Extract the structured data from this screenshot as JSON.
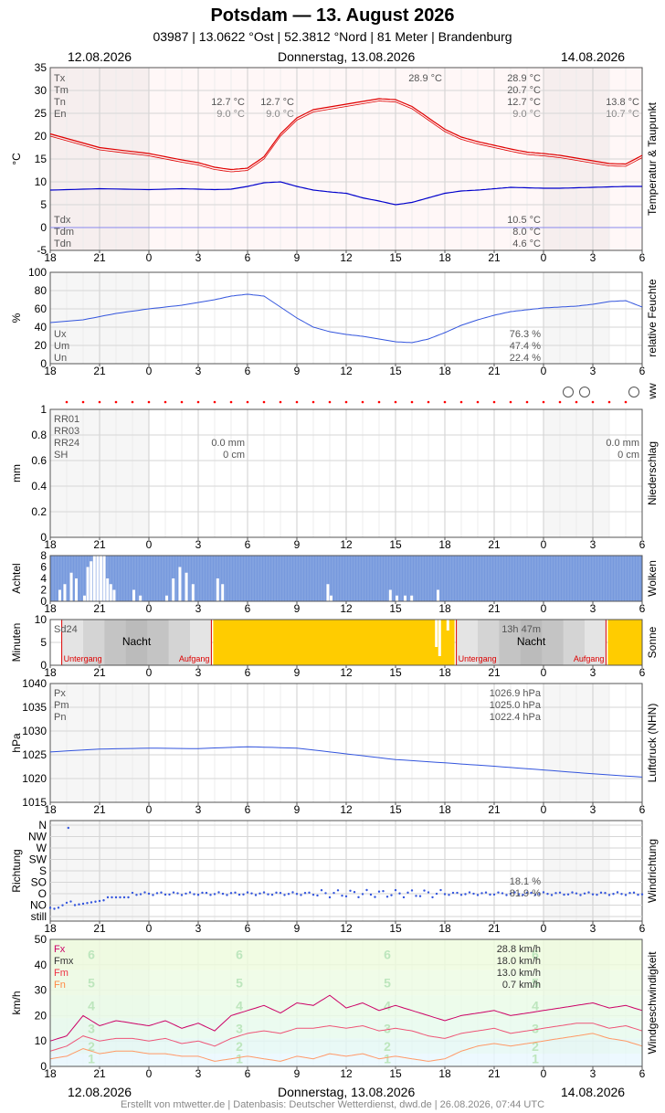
{
  "header": {
    "title": "Potsdam  —  13. August 2026",
    "subtitle": "03987  |  13.0622 °Ost  |  52.3812 °Nord  |  81 Meter  |  Brandenburg"
  },
  "dates": {
    "left": "12.08.2026",
    "center": "Donnerstag, 13.08.2026",
    "right": "14.08.2026"
  },
  "footer": "Erstellt von mtwetter.de | Datenbasis: Deutscher Wetterdienst, dwd.de | 26.08.2026, 07:44 UTC",
  "x_tick_labels": [
    "18",
    "21",
    "0",
    "3",
    "6",
    "9",
    "12",
    "15",
    "18",
    "21",
    "0",
    "3",
    "6"
  ],
  "chart_data": [
    {
      "id": "temperature",
      "type": "line",
      "ylabel": "°C",
      "side_label": "Temperatur & Taupunkt",
      "ylim": [
        -5,
        35
      ],
      "yticks": [
        -5,
        0,
        5,
        10,
        15,
        20,
        25,
        30,
        35
      ],
      "x": [
        -6,
        -3,
        0,
        2,
        3,
        4,
        5,
        6,
        7,
        8,
        9,
        10,
        11,
        12,
        13,
        14,
        15,
        16,
        17,
        18,
        19,
        20,
        21,
        22,
        23,
        24,
        25,
        26,
        27,
        28,
        29,
        30
      ],
      "series": [
        {
          "name": "T",
          "color": "#e00000",
          "values": [
            20.5,
            17.5,
            16.2,
            14.8,
            14.2,
            13.2,
            12.7,
            13.0,
            15.5,
            20.5,
            24.0,
            25.8,
            26.4,
            27.0,
            27.6,
            28.2,
            28.0,
            26.5,
            24.0,
            21.5,
            19.8,
            18.8,
            18.0,
            17.2,
            16.5,
            16.2,
            15.8,
            15.2,
            14.6,
            14.0,
            13.9,
            15.8
          ]
        },
        {
          "name": "Td",
          "color": "#0000cc",
          "values": [
            8.2,
            8.5,
            8.3,
            8.5,
            8.4,
            8.3,
            8.4,
            9.0,
            9.8,
            10.0,
            9.0,
            8.2,
            7.8,
            7.5,
            6.5,
            5.8,
            5.0,
            5.5,
            6.5,
            7.5,
            8.0,
            8.2,
            8.5,
            8.8,
            8.7,
            8.6,
            8.6,
            8.7,
            8.8,
            8.9,
            9.0,
            9.0
          ]
        }
      ],
      "labels_left": [
        "Tx",
        "Tm",
        "Tn",
        "En"
      ],
      "labels_left_bottom": [
        "Tdx",
        "Tdm",
        "Tdn"
      ],
      "day1": {
        "tn": "12.7 °C",
        "en": "9.0 °C"
      },
      "day2": {
        "tx": "28.9 °C",
        "tn": "12.7 °C",
        "en": "9.0 °C",
        "tx_peak": "28.9 °C"
      },
      "day3": {
        "tn": "13.8 °C",
        "en": "10.7 °C"
      },
      "stats": {
        "tx": "28.9 °C",
        "tm": "20.7 °C",
        "tn": "12.7 °C",
        "en": "9.0 °C",
        "tdx": "10.5 °C",
        "tdm": "8.0 °C",
        "tdn": "4.6 °C"
      }
    },
    {
      "id": "humidity",
      "type": "line",
      "ylabel": "%",
      "side_label": "relative Feuchte",
      "ylim": [
        0,
        100
      ],
      "yticks": [
        0,
        20,
        40,
        60,
        80,
        100
      ],
      "x": [
        -6,
        -4,
        -2,
        0,
        2,
        4,
        5,
        6,
        7,
        8,
        9,
        10,
        11,
        12,
        13,
        14,
        15,
        16,
        17,
        18,
        19,
        20,
        21,
        22,
        23,
        24,
        25,
        26,
        27,
        28,
        29,
        30
      ],
      "series": [
        {
          "name": "U",
          "color": "#3355dd",
          "values": [
            45,
            48,
            55,
            60,
            64,
            70,
            74,
            76,
            74,
            62,
            50,
            40,
            35,
            32,
            30,
            27,
            24,
            23,
            27,
            34,
            42,
            48,
            53,
            57,
            59,
            61,
            62,
            63,
            65,
            68,
            69,
            62
          ]
        }
      ],
      "labels_left": [
        "Ux",
        "Um",
        "Un"
      ],
      "stats": {
        "ux": "76.3 %",
        "um": "47.4 %",
        "un": "22.4 %"
      }
    },
    {
      "id": "ww",
      "side_label": "ww",
      "dot_color": "#ff0000",
      "symbols_x": [
        25.5,
        26.5,
        29.5
      ]
    },
    {
      "id": "precip",
      "type": "bar",
      "ylabel": "mm",
      "side_label": "Niederschlag",
      "ylim": [
        0,
        1.0
      ],
      "yticks": [
        0.0,
        0.2,
        0.4,
        0.6,
        0.8,
        1.0
      ],
      "labels_left": [
        "RR01",
        "RR03",
        "RR24",
        "SH"
      ],
      "day1": {
        "rr24": "0.0 mm",
        "sh": "0 cm"
      },
      "day3": {
        "rr24": "0.0 mm",
        "sh": "0 cm"
      }
    },
    {
      "id": "clouds",
      "type": "bar",
      "ylabel": "Achtel",
      "side_label": "Wolken",
      "ylim": [
        0,
        8
      ],
      "yticks": [
        0,
        2,
        4,
        6,
        8
      ],
      "fill_color": "#7799dd",
      "clear_segments": [
        {
          "x": -5.5,
          "v": 2
        },
        {
          "x": -5.2,
          "v": 3
        },
        {
          "x": -4.8,
          "v": 5
        },
        {
          "x": -4.5,
          "v": 4
        },
        {
          "x": -4.0,
          "v": 1
        },
        {
          "x": -3.8,
          "v": 6
        },
        {
          "x": -3.6,
          "v": 7
        },
        {
          "x": -3.4,
          "v": 8
        },
        {
          "x": -3.2,
          "v": 8
        },
        {
          "x": -3.0,
          "v": 8
        },
        {
          "x": -2.8,
          "v": 8
        },
        {
          "x": -2.6,
          "v": 4
        },
        {
          "x": -2.4,
          "v": 3
        },
        {
          "x": -2.2,
          "v": 2
        },
        {
          "x": -1.0,
          "v": 2
        },
        {
          "x": -0.6,
          "v": 1
        },
        {
          "x": 1.0,
          "v": 1
        },
        {
          "x": 1.4,
          "v": 4
        },
        {
          "x": 1.8,
          "v": 6
        },
        {
          "x": 2.2,
          "v": 5
        },
        {
          "x": 2.6,
          "v": 3
        },
        {
          "x": 4.1,
          "v": 4
        },
        {
          "x": 4.4,
          "v": 3
        },
        {
          "x": 10.8,
          "v": 3
        },
        {
          "x": 11.0,
          "v": 1
        },
        {
          "x": 14.6,
          "v": 2
        },
        {
          "x": 15.0,
          "v": 1
        },
        {
          "x": 15.5,
          "v": 1
        },
        {
          "x": 15.9,
          "v": 1
        },
        {
          "x": 17.5,
          "v": 2
        }
      ]
    },
    {
      "id": "sun",
      "type": "bar",
      "ylabel": "Minuten",
      "side_label": "Sonne",
      "ylim": [
        0,
        10
      ],
      "yticks": [
        0,
        5,
        10
      ],
      "label_left": "Sd24",
      "night_label": "Nacht",
      "sunset_label": "Untergang",
      "sunrise_label": "Aufgang",
      "sun_duration": "13h 47m",
      "sunset_x": [
        -5.3,
        18.7
      ],
      "sunrise_x": [
        3.8,
        27.8
      ],
      "sun_color": "#ffcc00"
    },
    {
      "id": "pressure",
      "type": "line",
      "ylabel": "hPa",
      "side_label": "Luftdruck (NHN)",
      "ylim": [
        1015,
        1040
      ],
      "yticks": [
        1015,
        1020,
        1025,
        1030,
        1035,
        1040
      ],
      "x": [
        -6,
        -3,
        0,
        3,
        6,
        9,
        12,
        15,
        18,
        21,
        24,
        27,
        30
      ],
      "series": [
        {
          "name": "P",
          "color": "#3355dd",
          "values": [
            1025.6,
            1026.2,
            1026.4,
            1026.3,
            1026.7,
            1026.4,
            1025.2,
            1024.0,
            1023.3,
            1022.6,
            1021.8,
            1021.0,
            1020.3
          ]
        }
      ],
      "labels_left": [
        "Px",
        "Pm",
        "Pn"
      ],
      "stats": {
        "px": "1026.9 hPa",
        "pm": "1025.0 hPa",
        "pn": "1022.4 hPa"
      }
    },
    {
      "id": "wind_dir",
      "type": "scatter",
      "ylabel": "Richtung",
      "side_label": "Windrichtung",
      "ycats": [
        "N",
        "NW",
        "W",
        "SW",
        "S",
        "SO",
        "O",
        "NO",
        "still"
      ],
      "point_color": "#3355dd",
      "stat1": "18.1 %",
      "stat2": "81.9 %"
    },
    {
      "id": "wind_speed",
      "type": "line",
      "ylabel": "km/h",
      "side_label": "Windgeschwindigkeit",
      "ylim": [
        0,
        50
      ],
      "yticks": [
        0,
        10,
        20,
        30,
        40,
        50
      ],
      "beaufort_labels": [
        "1",
        "2",
        "3",
        "4",
        "5",
        "6"
      ],
      "x": [
        -6,
        -5,
        -4,
        -3,
        -2,
        -1,
        0,
        1,
        2,
        3,
        4,
        5,
        6,
        7,
        8,
        9,
        10,
        11,
        12,
        13,
        14,
        15,
        16,
        17,
        18,
        19,
        20,
        21,
        22,
        23,
        24,
        25,
        26,
        27,
        28,
        29,
        30
      ],
      "series": [
        {
          "name": "Fx",
          "color": "#cc0066",
          "values": [
            10,
            12,
            20,
            16,
            18,
            17,
            16,
            18,
            15,
            17,
            14,
            20,
            22,
            24,
            21,
            25,
            24,
            28,
            23,
            25,
            22,
            24,
            22,
            20,
            18,
            20,
            21,
            22,
            20,
            21,
            22,
            23,
            24,
            25,
            23,
            24,
            22
          ]
        },
        {
          "name": "Fm",
          "color": "#ee5577",
          "values": [
            6,
            8,
            12,
            10,
            11,
            11,
            10,
            11,
            9,
            10,
            8,
            11,
            13,
            14,
            13,
            15,
            15,
            16,
            15,
            16,
            14,
            15,
            14,
            12,
            11,
            13,
            14,
            15,
            13,
            14,
            15,
            16,
            17,
            17,
            15,
            16,
            14
          ]
        },
        {
          "name": "Fn",
          "color": "#ff9966",
          "values": [
            3,
            4,
            7,
            5,
            6,
            6,
            5,
            5,
            4,
            4,
            2,
            3,
            4,
            3,
            2,
            4,
            3,
            5,
            4,
            5,
            3,
            4,
            3,
            2,
            3,
            6,
            8,
            9,
            8,
            9,
            10,
            11,
            12,
            13,
            11,
            10,
            8
          ]
        }
      ],
      "labels_left": [
        "Fx",
        "Fmx",
        "Fm",
        "Fn"
      ],
      "label_colors": [
        "#cc0066",
        "#333333",
        "#ee3344",
        "#ff8844"
      ],
      "stats": {
        "fx": "28.8 km/h",
        "fmx": "18.0 km/h",
        "fm": "13.0 km/h",
        "fn": "0.7 km/h"
      }
    }
  ]
}
